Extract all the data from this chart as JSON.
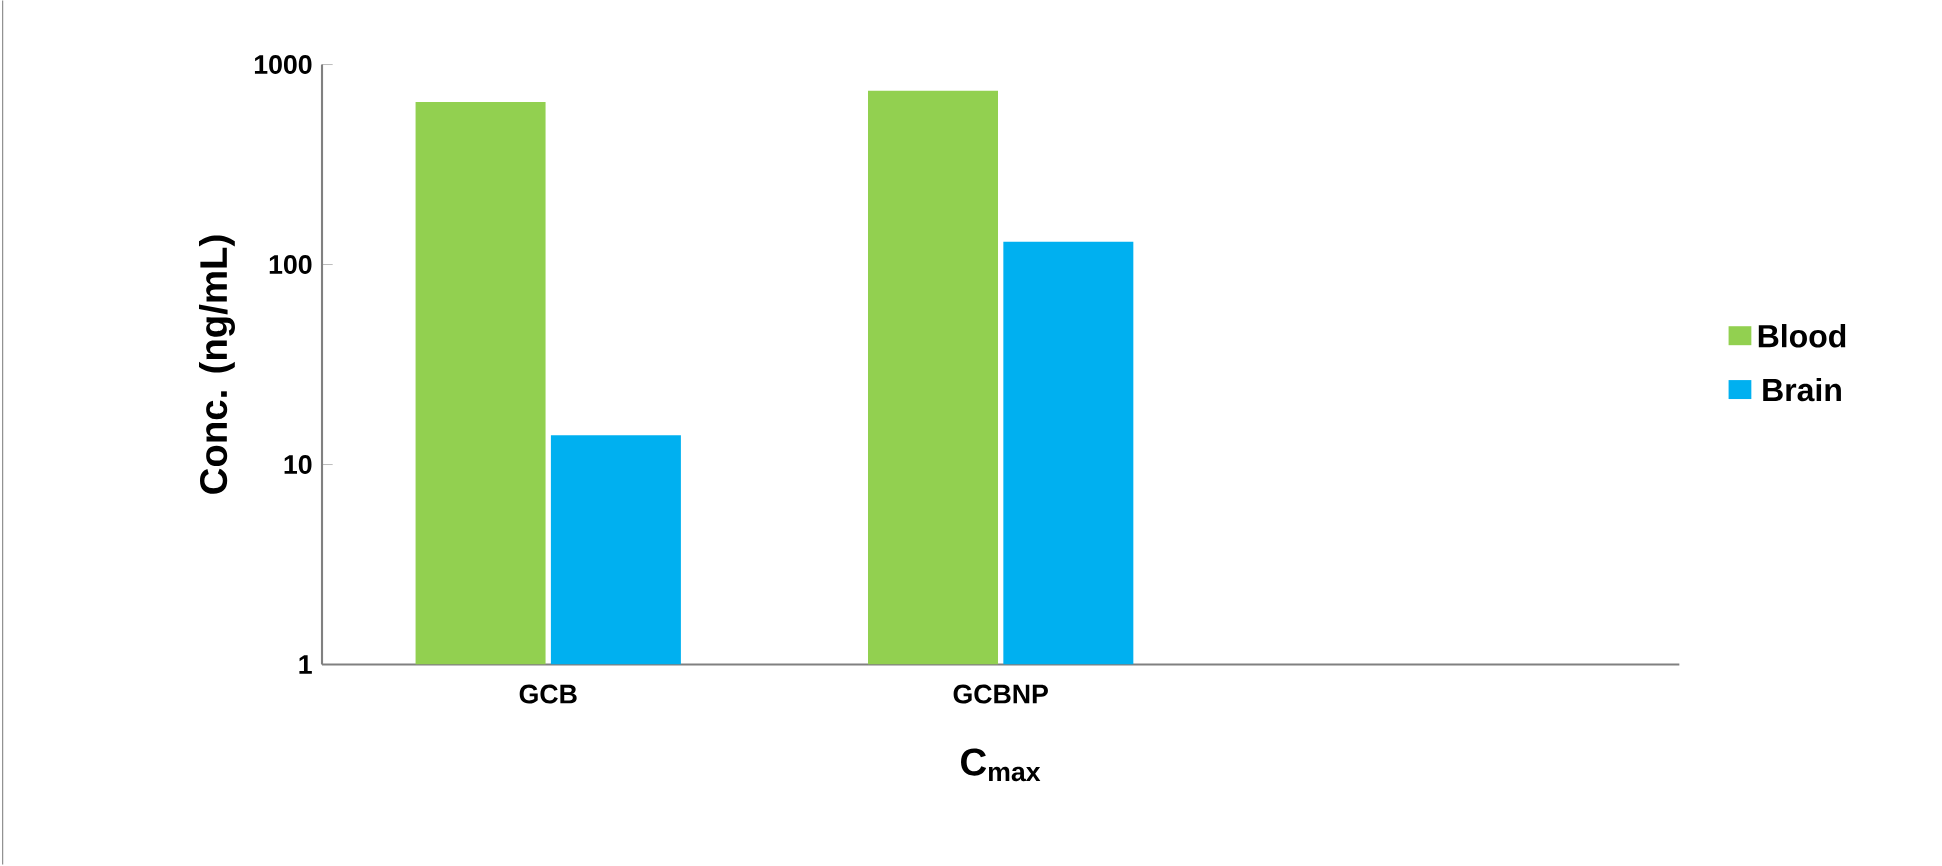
{
  "chart_data": {
    "type": "bar",
    "xlabel": "C$_{max}$",
    "ylabel": "Conc. (ng/mL)",
    "categories": [
      "GCB",
      "GCBNP",
      null
    ],
    "series": [
      {
        "name": "Blood",
        "color": "#92d050",
        "values": [
          650,
          740,
          null
        ]
      },
      {
        "name": "Brain",
        "color": "#00b0f0",
        "values": [
          14,
          130,
          null
        ]
      }
    ],
    "log": "y",
    "ylim": [
      1,
      1000
    ],
    "yticks": [
      1,
      10,
      100,
      1000
    ],
    "grid": false,
    "legend": "right"
  }
}
